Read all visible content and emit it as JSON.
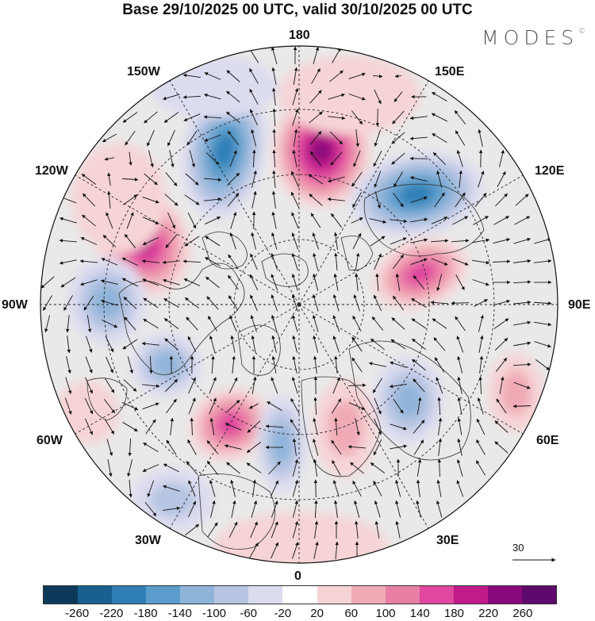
{
  "title": "Base 29/10/2025 00 UTC, valid 30/10/2025 00 UTC",
  "logo": "MODES",
  "logo_mark": "©",
  "longitude_labels": [
    "180",
    "150E",
    "120E",
    "90E",
    "60E",
    "30E",
    "0",
    "30W",
    "60W",
    "90W",
    "120W",
    "150W"
  ],
  "reference_vector": "30",
  "colorbar": {
    "ticks": [
      "-260",
      "-220",
      "-180",
      "-140",
      "-100",
      "-60",
      "-20",
      "20",
      "60",
      "100",
      "140",
      "180",
      "220",
      "260"
    ],
    "colors": [
      "#0d3a5a",
      "#18608e",
      "#2f7fb6",
      "#5a9ccb",
      "#8fb4d9",
      "#b7c5e2",
      "#dcdcef",
      "#ffffff",
      "#f6d4d6",
      "#f0aab6",
      "#ea7fa6",
      "#e0479f",
      "#c21a8a",
      "#8a0a7c",
      "#5e0a6c"
    ]
  },
  "anomaly_centers": [
    {
      "sign": "negative",
      "name": "low-150W"
    },
    {
      "sign": "positive",
      "name": "high-dateline"
    },
    {
      "sign": "negative",
      "name": "low-130E"
    },
    {
      "sign": "positive",
      "name": "high-120W"
    },
    {
      "sign": "positive",
      "name": "high-100E"
    },
    {
      "sign": "negative",
      "name": "low-90W"
    },
    {
      "sign": "negative",
      "name": "low-70W"
    },
    {
      "sign": "negative",
      "name": "low-60E"
    },
    {
      "sign": "positive",
      "name": "high-50W"
    },
    {
      "sign": "negative",
      "name": "low-10W"
    },
    {
      "sign": "positive",
      "name": "high-20E"
    },
    {
      "sign": "negative",
      "name": "low-35W"
    },
    {
      "sign": "positive",
      "name": "high-75E"
    }
  ]
}
